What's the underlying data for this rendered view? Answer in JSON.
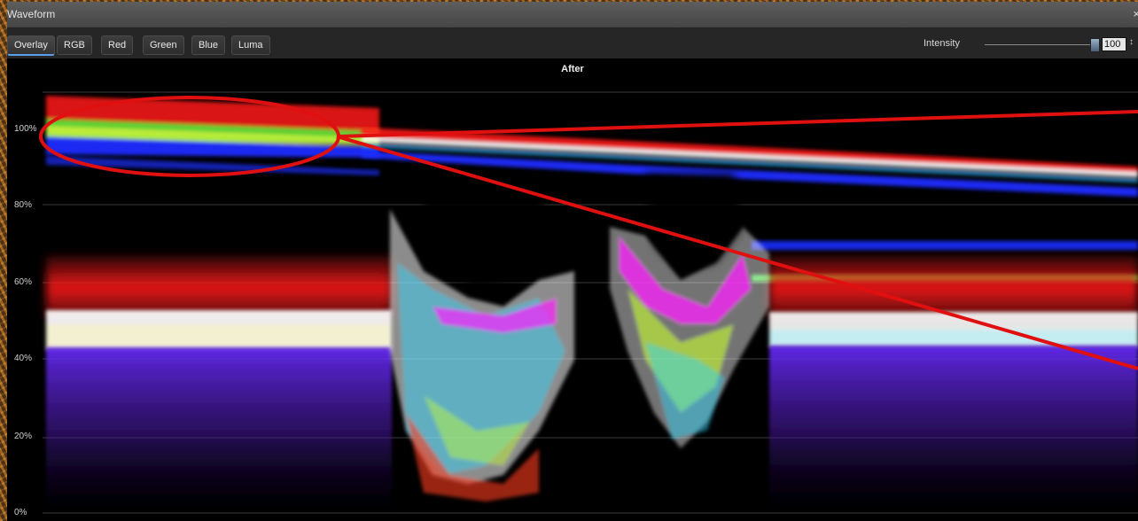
{
  "window": {
    "title": "Waveform",
    "close": "×"
  },
  "tabs": [
    {
      "label": "Overlay",
      "active": true
    },
    {
      "label": "RGB",
      "active": false
    },
    {
      "label": "Red",
      "active": false
    },
    {
      "label": "Green",
      "active": false
    },
    {
      "label": "Blue",
      "active": false
    },
    {
      "label": "Luma",
      "active": false
    }
  ],
  "intensity": {
    "label": "Intensity",
    "value": "100",
    "spinner": "↕"
  },
  "scope": {
    "title": "After",
    "y_ticks": [
      "100%",
      "80%",
      "60%",
      "40%",
      "20%",
      "0%"
    ]
  },
  "colors": {
    "red": "#ff1a1a",
    "green": "#3cff3c",
    "blue": "#1a2cff",
    "white": "#ffffff",
    "annotation": "#e01010"
  },
  "annotation": {
    "type": "ellipse-callout",
    "color": "#e01010"
  }
}
